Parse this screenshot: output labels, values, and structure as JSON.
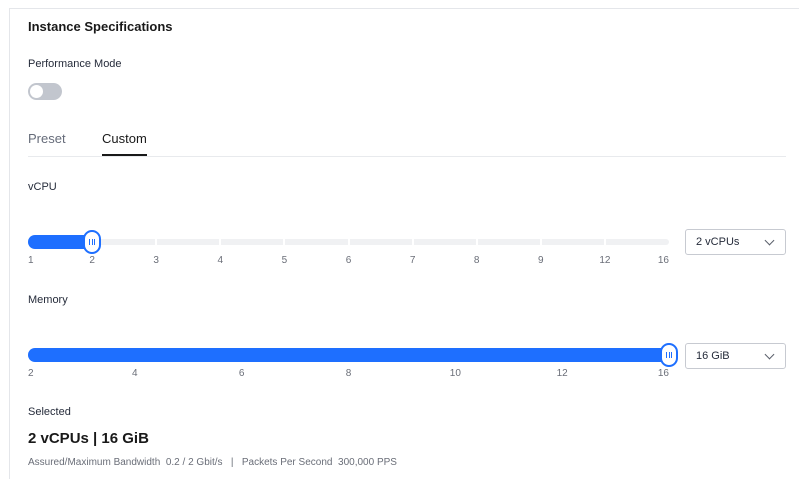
{
  "section_title": "Instance Specifications",
  "performance_mode": {
    "label": "Performance Mode",
    "enabled": false
  },
  "tabs": [
    {
      "label": "Preset",
      "active": false
    },
    {
      "label": "Custom",
      "active": true
    }
  ],
  "vcpu": {
    "label": "vCPU",
    "ticks": [
      "1",
      "2",
      "3",
      "4",
      "5",
      "6",
      "7",
      "8",
      "9",
      "12",
      "16"
    ],
    "selected_index": 1,
    "select_value": "2 vCPUs"
  },
  "memory": {
    "label": "Memory",
    "ticks": [
      "2",
      "4",
      "6",
      "8",
      "10",
      "12",
      "16"
    ],
    "selected_value": "16",
    "select_value": "16 GiB"
  },
  "selected": {
    "label": "Selected",
    "summary": "2 vCPUs | 16 GiB",
    "bandwidth_label": "Assured/Maximum Bandwidth",
    "bandwidth_value": "0.2 / 2 Gbit/s",
    "separator": "|",
    "pps_label": "Packets Per Second",
    "pps_value": "300,000 PPS"
  },
  "colors": {
    "accent": "#1e6fff",
    "toggle_off": "#c2c6ce",
    "text": "#252b3a"
  }
}
